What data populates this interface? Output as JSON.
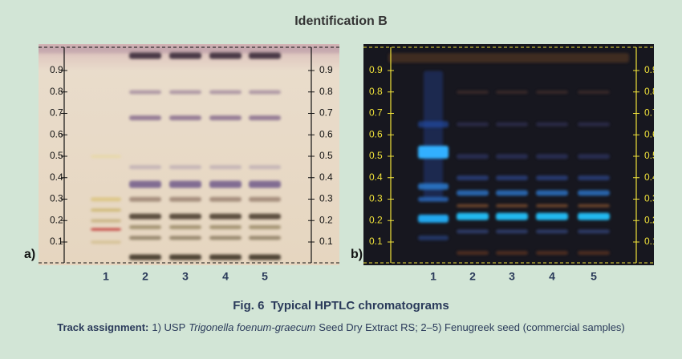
{
  "title": "Identification B",
  "panel_labels": [
    "a)",
    "b)"
  ],
  "rf_ticks": [
    "0.9",
    "0.8",
    "0.7",
    "0.6",
    "0.5",
    "0.4",
    "0.3",
    "0.2",
    "0.1"
  ],
  "tracks": [
    "1",
    "2",
    "3",
    "4",
    "5"
  ],
  "caption": {
    "figure": "Fig. 6",
    "title": "Typical HPTLC chromatograms"
  },
  "track_assignment": {
    "label": "Track assignment:",
    "prefix": "1) USP",
    "species": "Trigonella foenum-graecum",
    "suffix": "Seed Dry Extract RS; 2–5) Fenugreek seed (commercial samples)"
  }
}
